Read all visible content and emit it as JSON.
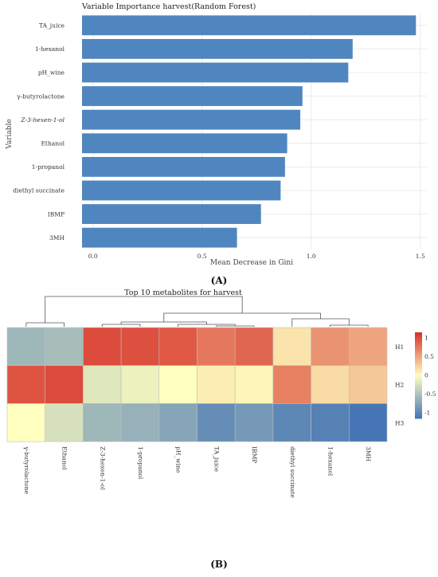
{
  "chart_data": [
    {
      "type": "bar",
      "orientation": "horizontal",
      "title": "Variable Importance harvest(Random Forest)",
      "xlabel": "Mean Decrease in Gini",
      "ylabel": "Variable",
      "xlim": [
        -0.05,
        1.53
      ],
      "xticks": [
        "0.0",
        "0.5",
        "1.0",
        "1.5"
      ],
      "grid": true,
      "color": "#4f86bf",
      "categories": [
        "TA_juice",
        "1-hexanol",
        "pH_wine",
        "γ-butyrolactone",
        "Z-3-hexen-1-ol",
        "Ethanol",
        "1-propanol",
        "diethyl succinate",
        "IBMP",
        "3MH"
      ],
      "values": [
        1.48,
        1.19,
        1.17,
        0.96,
        0.95,
        0.89,
        0.88,
        0.86,
        0.77,
        0.66
      ],
      "panel_label": "(A)"
    },
    {
      "type": "heatmap",
      "title": "Top 10 metabolites for harvest",
      "columns": [
        "γ-butyrolactone",
        "Ethanol",
        "Z-3-hexen-1-ol",
        "1-propanol",
        "pH_wine",
        "TA_juice",
        "IBMP",
        "diethyl succinate",
        "1-hexanol",
        "3MH"
      ],
      "rows": [
        "H1",
        "H2",
        "H3"
      ],
      "values": [
        [
          -0.6,
          -0.55,
          1.0,
          0.97,
          0.92,
          0.75,
          0.85,
          0.15,
          0.6,
          0.5
        ],
        [
          0.95,
          1.0,
          -0.2,
          -0.12,
          0.0,
          0.1,
          0.05,
          0.7,
          0.2,
          0.3
        ],
        [
          0.0,
          -0.25,
          -0.6,
          -0.65,
          -0.75,
          -0.95,
          -0.85,
          -1.0,
          -1.05,
          -1.15
        ]
      ],
      "colorbar": {
        "ticks": [
          "1",
          "0.5",
          "0",
          "-0.5",
          "-1"
        ],
        "range": [
          -1.15,
          1.15
        ]
      },
      "colors": {
        "low": "#4575b4",
        "mid": "#ffffbf",
        "high": "#d73027"
      },
      "panel_label": "(B)"
    }
  ]
}
